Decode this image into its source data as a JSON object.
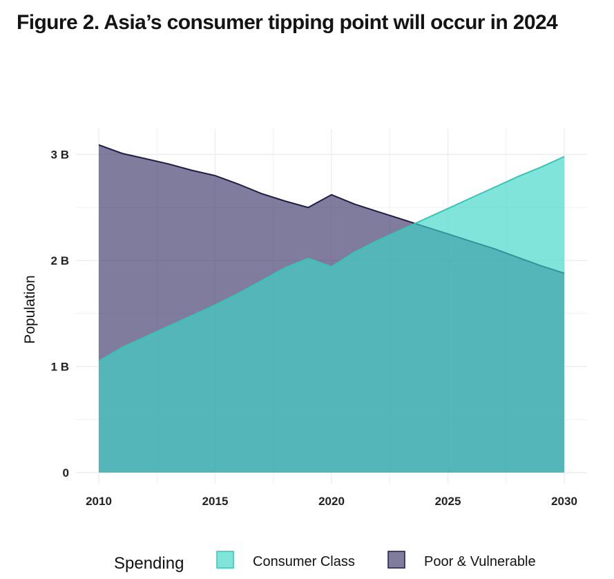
{
  "title": "Figure 2. Asia’s consumer tipping point will occur in 2024",
  "chart_data": {
    "type": "area",
    "title": "Figure 2. Asia’s consumer tipping point will occur in 2024",
    "xlabel": "",
    "ylabel": "Population",
    "xlim": [
      2010,
      2030
    ],
    "ylim": [
      0,
      3.1
    ],
    "x_ticks": [
      "2010",
      "2015",
      "2020",
      "2025",
      "2030"
    ],
    "y_ticks": [
      {
        "value": 0,
        "label": "0"
      },
      {
        "value": 1,
        "label": "1 B"
      },
      {
        "value": 2,
        "label": "2 B"
      },
      {
        "value": 3,
        "label": "3 B"
      }
    ],
    "grid": true,
    "legend": {
      "title": "Spending",
      "position": "bottom"
    },
    "x": [
      2010,
      2011,
      2012,
      2013,
      2014,
      2015,
      2016,
      2017,
      2018,
      2019,
      2020,
      2021,
      2022,
      2023,
      2024,
      2025,
      2026,
      2027,
      2028,
      2029,
      2030
    ],
    "series": [
      {
        "name": "Poor & Vulnerable",
        "color": "#3b3669",
        "values": [
          3.09,
          3.01,
          2.96,
          2.91,
          2.85,
          2.8,
          2.72,
          2.63,
          2.56,
          2.5,
          2.62,
          2.53,
          2.46,
          2.39,
          2.32,
          2.25,
          2.18,
          2.11,
          2.03,
          1.95,
          1.88
        ]
      },
      {
        "name": "Consumer Class",
        "color": "#3dd6c6",
        "values": [
          1.05,
          1.18,
          1.28,
          1.38,
          1.48,
          1.58,
          1.69,
          1.81,
          1.93,
          2.02,
          1.94,
          2.08,
          2.19,
          2.29,
          2.39,
          2.49,
          2.59,
          2.69,
          2.79,
          2.88,
          2.98
        ]
      }
    ]
  }
}
